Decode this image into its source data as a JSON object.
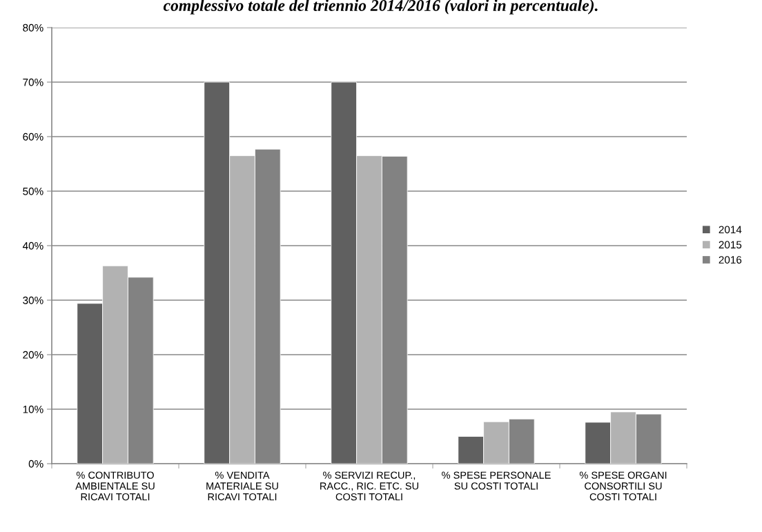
{
  "chart_data": {
    "type": "bar",
    "title": "complessivo totale del triennio 2014/2016 (valori in percentuale).",
    "categories": [
      "% CONTRIBUTO\nAMBIENTALE SU\nRICAVI TOTALI",
      "% VENDITA\nMATERIALE SU\nRICAVI TOTALI",
      "% SERVIZI RECUP.,\nRACC., RIC. ETC. SU\nCOSTI TOTALI",
      "% SPESE PERSONALE\nSU COSTI TOTALI",
      "% SPESE ORGANI\nCONSORTILI SU\nCOSTI TOTALI"
    ],
    "series": [
      {
        "name": "2014",
        "color": "#606060",
        "values": [
          29.4,
          70.0,
          70.0,
          5.0,
          7.6
        ]
      },
      {
        "name": "2015",
        "color": "#b2b2b2",
        "values": [
          36.3,
          56.5,
          56.5,
          7.7,
          9.5
        ]
      },
      {
        "name": "2016",
        "color": "#828282",
        "values": [
          34.2,
          57.7,
          56.4,
          8.2,
          9.1
        ]
      }
    ],
    "ylim": [
      0,
      80
    ],
    "yticks": [
      {
        "value": 0,
        "label": "0%"
      },
      {
        "value": 10,
        "label": "10%"
      },
      {
        "value": 20,
        "label": "20%"
      },
      {
        "value": 30,
        "label": "30%"
      },
      {
        "value": 40,
        "label": "40%"
      },
      {
        "value": 50,
        "label": "50%"
      },
      {
        "value": 60,
        "label": "60%"
      },
      {
        "value": 70,
        "label": "70%"
      },
      {
        "value": 80,
        "label": "80%"
      }
    ],
    "grid": "y",
    "legend": "right"
  }
}
